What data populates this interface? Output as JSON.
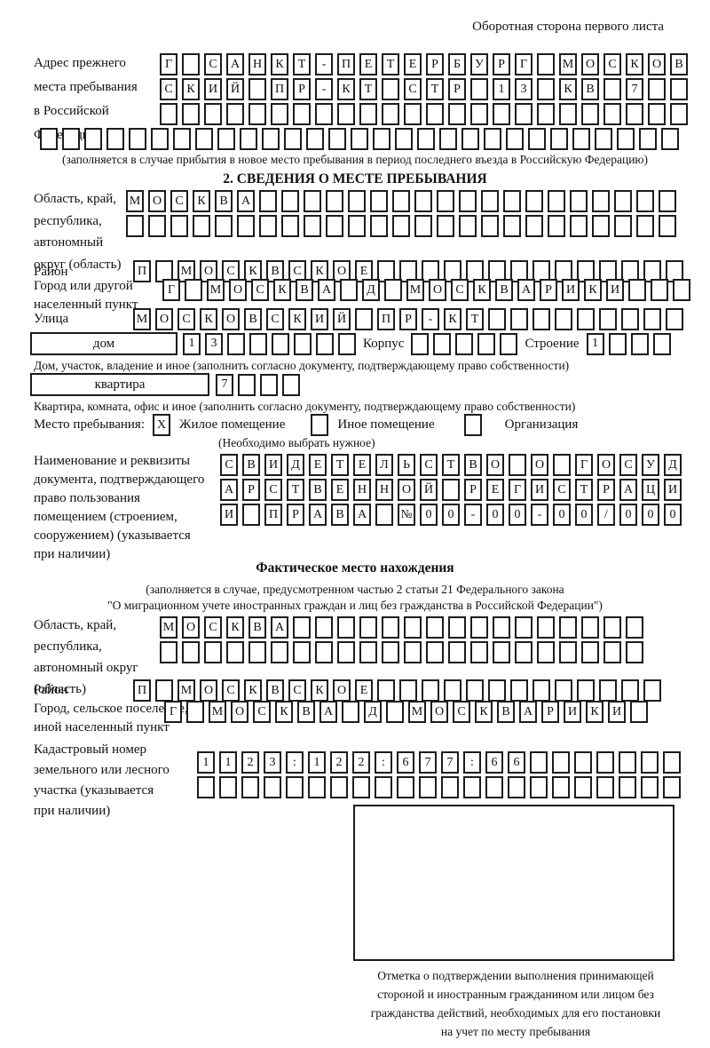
{
  "header": {
    "back_side_note": "Оборотная сторона первого листа"
  },
  "prev_address": {
    "label_lines": [
      "Адрес прежнего",
      "места пребывания",
      "в Российской",
      "Федерации"
    ],
    "row1": {
      "chars": [
        "Г",
        "",
        "С",
        "А",
        "Н",
        "К",
        "Т",
        "-",
        "П",
        "Е",
        "Т",
        "Е",
        "Р",
        "Б",
        "У",
        "Р",
        "Г",
        "",
        "М",
        "О",
        "С",
        "К",
        "О",
        "В"
      ],
      "count": 24
    },
    "row2": {
      "chars": [
        "С",
        "К",
        "И",
        "Й",
        "",
        "П",
        "Р",
        "-",
        "К",
        "Т",
        "",
        "С",
        "Т",
        "Р",
        "",
        "1",
        "3",
        "",
        "К",
        "В",
        "",
        "7",
        "",
        ""
      ],
      "count": 24
    },
    "row3": {
      "count": 24
    },
    "row4": {
      "count": 29
    },
    "note": "(заполняется в случае прибытия в новое место пребывания в период последнего въезда в Российскую Федерацию)"
  },
  "section2": {
    "title": "2. СВЕДЕНИЯ О МЕСТЕ ПРЕБЫВАНИЯ",
    "region": {
      "label_lines": [
        "Область, край,",
        "республика,",
        "автономный",
        "округ (область)"
      ],
      "row1": {
        "chars": [
          "М",
          "О",
          "С",
          "К",
          "В",
          "А"
        ],
        "count": 25
      },
      "row2": {
        "count": 25
      }
    },
    "district": {
      "label": "Район",
      "row": {
        "chars": [
          "П",
          "",
          "М",
          "О",
          "С",
          "К",
          "В",
          "С",
          "К",
          "О",
          "Е"
        ],
        "count": 25
      }
    },
    "city": {
      "label_lines": [
        "Город или другой",
        "населенный пункт"
      ],
      "row": {
        "chars": [
          "Г",
          "",
          "М",
          "О",
          "С",
          "К",
          "В",
          "А",
          "",
          "Д",
          "",
          "М",
          "О",
          "С",
          "К",
          "В",
          "А",
          "Р",
          "И",
          "К",
          "И"
        ],
        "count": 24
      }
    },
    "street": {
      "label": "Улица",
      "row": {
        "chars": [
          "М",
          "О",
          "С",
          "К",
          "О",
          "В",
          "С",
          "К",
          "И",
          "Й",
          "",
          "П",
          "Р",
          "-",
          "К",
          "Т"
        ],
        "count": 25
      }
    },
    "house": {
      "house_label": "дом",
      "house_cells": {
        "chars": [
          "1",
          "3"
        ],
        "count": 8
      },
      "korpus_label": "Корпус",
      "korpus_cells": {
        "count": 5
      },
      "stroenie_label": "Строение",
      "stroenie_cells": {
        "chars": [
          "1"
        ],
        "count": 4
      },
      "note": "Дом, участок, владение и иное (заполнить согласно документу, подтверждающему право собственности)"
    },
    "apartment": {
      "label": "квартира",
      "cells": {
        "chars": [
          "7"
        ],
        "count": 4
      },
      "note": "Квартира, комната, офис и иное (заполнить согласно документу, подтверждающему право собственности)"
    },
    "stay_type": {
      "label": "Место пребывания:",
      "options": [
        {
          "mark": "X",
          "label": "Жилое помещение"
        },
        {
          "mark": "",
          "label": "Иное помещение"
        },
        {
          "mark": "",
          "label": "Организация"
        }
      ],
      "note": "(Необходимо выбрать нужное)"
    },
    "document": {
      "label_lines": [
        "Наименование и реквизиты",
        "документа, подтверждающего",
        "право пользования",
        "помещением (строением,",
        "сооружением) (указывается",
        "при наличии)"
      ],
      "row1": {
        "chars": [
          "С",
          "В",
          "И",
          "Д",
          "Е",
          "Т",
          "Е",
          "Л",
          "Ь",
          "С",
          "Т",
          "В",
          "О",
          "",
          "О",
          "",
          "Г",
          "О",
          "С",
          "У",
          "Д"
        ],
        "count": 21
      },
      "row2": {
        "chars": [
          "А",
          "Р",
          "С",
          "Т",
          "В",
          "Е",
          "Н",
          "Н",
          "О",
          "Й",
          "",
          "Р",
          "Е",
          "Г",
          "И",
          "С",
          "Т",
          "Р",
          "А",
          "Ц",
          "И"
        ],
        "count": 21
      },
      "row3": {
        "chars": [
          "И",
          "",
          "П",
          "Р",
          "А",
          "В",
          "А",
          "",
          "№",
          "0",
          "0",
          "-",
          "0",
          "0",
          "-",
          "0",
          "0",
          "/",
          "0",
          "0",
          "0"
        ],
        "count": 21
      }
    }
  },
  "actual_location": {
    "title": "Фактическое место нахождения",
    "note_line1": "(заполняется в случае, предусмотренном частью 2 статьи 21 Федерального закона",
    "note_line2": "\"О миграционном учете иностранных граждан и лиц без гражданства в Российской Федерации\")",
    "region": {
      "label_lines": [
        "Область, край,",
        "республика,",
        "автономный округ",
        "(область)"
      ],
      "row1": {
        "chars": [
          "М",
          "О",
          "С",
          "К",
          "В",
          "А"
        ],
        "count": 22
      },
      "row2": {
        "count": 22
      }
    },
    "district": {
      "label": "Район",
      "row": {
        "chars": [
          "П",
          "",
          "М",
          "О",
          "С",
          "К",
          "В",
          "С",
          "К",
          "О",
          "Е"
        ],
        "count": 24
      }
    },
    "city": {
      "label_lines": [
        "Город, сельское поселение,",
        "иной населенный пункт"
      ],
      "row": {
        "chars": [
          "Г",
          "",
          "М",
          "О",
          "С",
          "К",
          "В",
          "А",
          "",
          "Д",
          "",
          "М",
          "О",
          "С",
          "К",
          "В",
          "А",
          "Р",
          "И",
          "К",
          "И"
        ],
        "count": 22
      }
    },
    "cadastral": {
      "label_lines": [
        "Кадастровый номер",
        "земельного или лесного",
        "участка (указывается",
        "при наличии)"
      ],
      "row1": {
        "chars": [
          "1",
          "1",
          "2",
          "3",
          ":",
          "1",
          "2",
          "2",
          ":",
          "6",
          "7",
          "7",
          ":",
          "6",
          "6"
        ],
        "count": 22
      },
      "row2": {
        "count": 22
      }
    },
    "stamp_caption_lines": [
      "Отметка о подтверждении выполнения принимающей",
      "стороной и иностранным гражданином или лицом без",
      "гражданства действий, необходимых для его постановки",
      "на учет по месту пребывания"
    ]
  }
}
